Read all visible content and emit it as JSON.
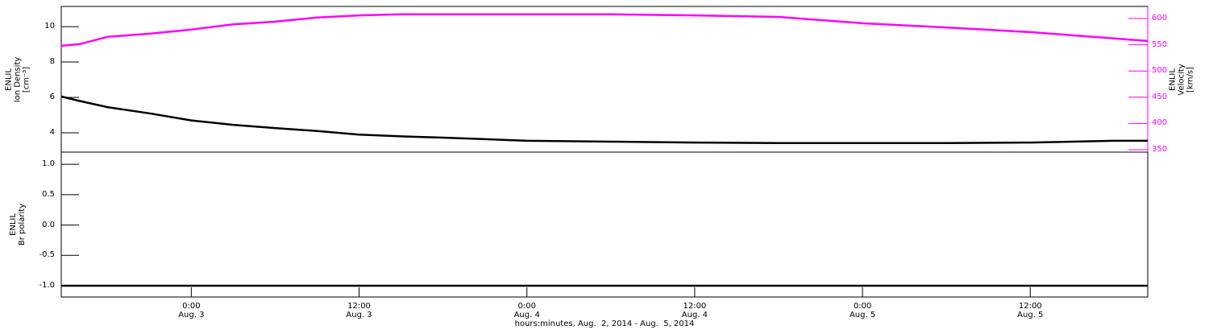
{
  "chart_data": [
    {
      "type": "line",
      "ylabel": "ENLIL\nIon Density\n[cm⁻³]",
      "y2label": "ENLIL\nVelocity\n[km/s]",
      "x": [
        14.7,
        16,
        18,
        21,
        24,
        27,
        30,
        33,
        36,
        39,
        42,
        45,
        48,
        54,
        60,
        66,
        72,
        78,
        84,
        90,
        92.4
      ],
      "xlim": [
        14.7,
        92.4
      ],
      "ylim": [
        2.91,
        11.14
      ],
      "yticks": [
        4,
        6,
        8,
        10
      ],
      "y2lim": [
        345.4,
        623
      ],
      "y2ticks": [
        350,
        400,
        450,
        500,
        550,
        600
      ],
      "y2color": "#ff00ff",
      "series": [
        {
          "color": "#000000",
          "values": [
            6.05,
            5.8,
            5.45,
            5.1,
            4.7,
            4.45,
            4.27,
            4.1,
            3.9,
            3.8,
            3.73,
            3.64,
            3.55,
            3.5,
            3.45,
            3.42,
            3.42,
            3.42,
            3.45,
            3.55,
            3.55
          ]
        },
        {
          "color": "#ff00ff",
          "axis": "y2",
          "values": [
            548,
            551,
            565,
            571,
            579,
            589,
            594,
            602,
            606,
            608,
            608,
            608,
            608,
            608,
            606,
            603,
            591,
            583,
            574,
            562,
            557
          ]
        }
      ]
    },
    {
      "type": "line",
      "ylabel": "ENLIL\nBr polarity",
      "xlabel": "hours:minutes, Aug.  2, 2014 - Aug.  5, 2014",
      "x": [
        14.7,
        16,
        18,
        21,
        24,
        27,
        30,
        33,
        36,
        39,
        42,
        45,
        48,
        54,
        60,
        66,
        72,
        78,
        84,
        90,
        92.4
      ],
      "xlim": [
        14.7,
        92.4
      ],
      "xticks": [
        {
          "value": 24,
          "label": "0:00\nAug. 3"
        },
        {
          "value": 36,
          "label": "12:00\nAug. 3"
        },
        {
          "value": 48,
          "label": "0:00\nAug. 4"
        },
        {
          "value": 60,
          "label": "12:00\nAug. 4"
        },
        {
          "value": 72,
          "label": "0:00\nAug. 5"
        },
        {
          "value": 84,
          "label": "12:00\nAug. 5"
        }
      ],
      "ylim": [
        -1.185,
        1.2
      ],
      "yticks": [
        {
          "value": -1,
          "label": "-1.0"
        },
        {
          "value": -0.5,
          "label": "-0.5"
        },
        {
          "value": 0,
          "label": "0.0"
        },
        {
          "value": 0.5,
          "label": "0.5"
        },
        {
          "value": 1,
          "label": "1.0"
        }
      ],
      "series": [
        {
          "color": "#000000",
          "values": [
            -1,
            -1,
            -1,
            -1,
            -1,
            -1,
            -1,
            -1,
            -1,
            -1,
            -1,
            -1,
            -1,
            -1,
            -1,
            -1,
            -1,
            -1,
            -1,
            -1,
            -1
          ]
        }
      ]
    }
  ]
}
